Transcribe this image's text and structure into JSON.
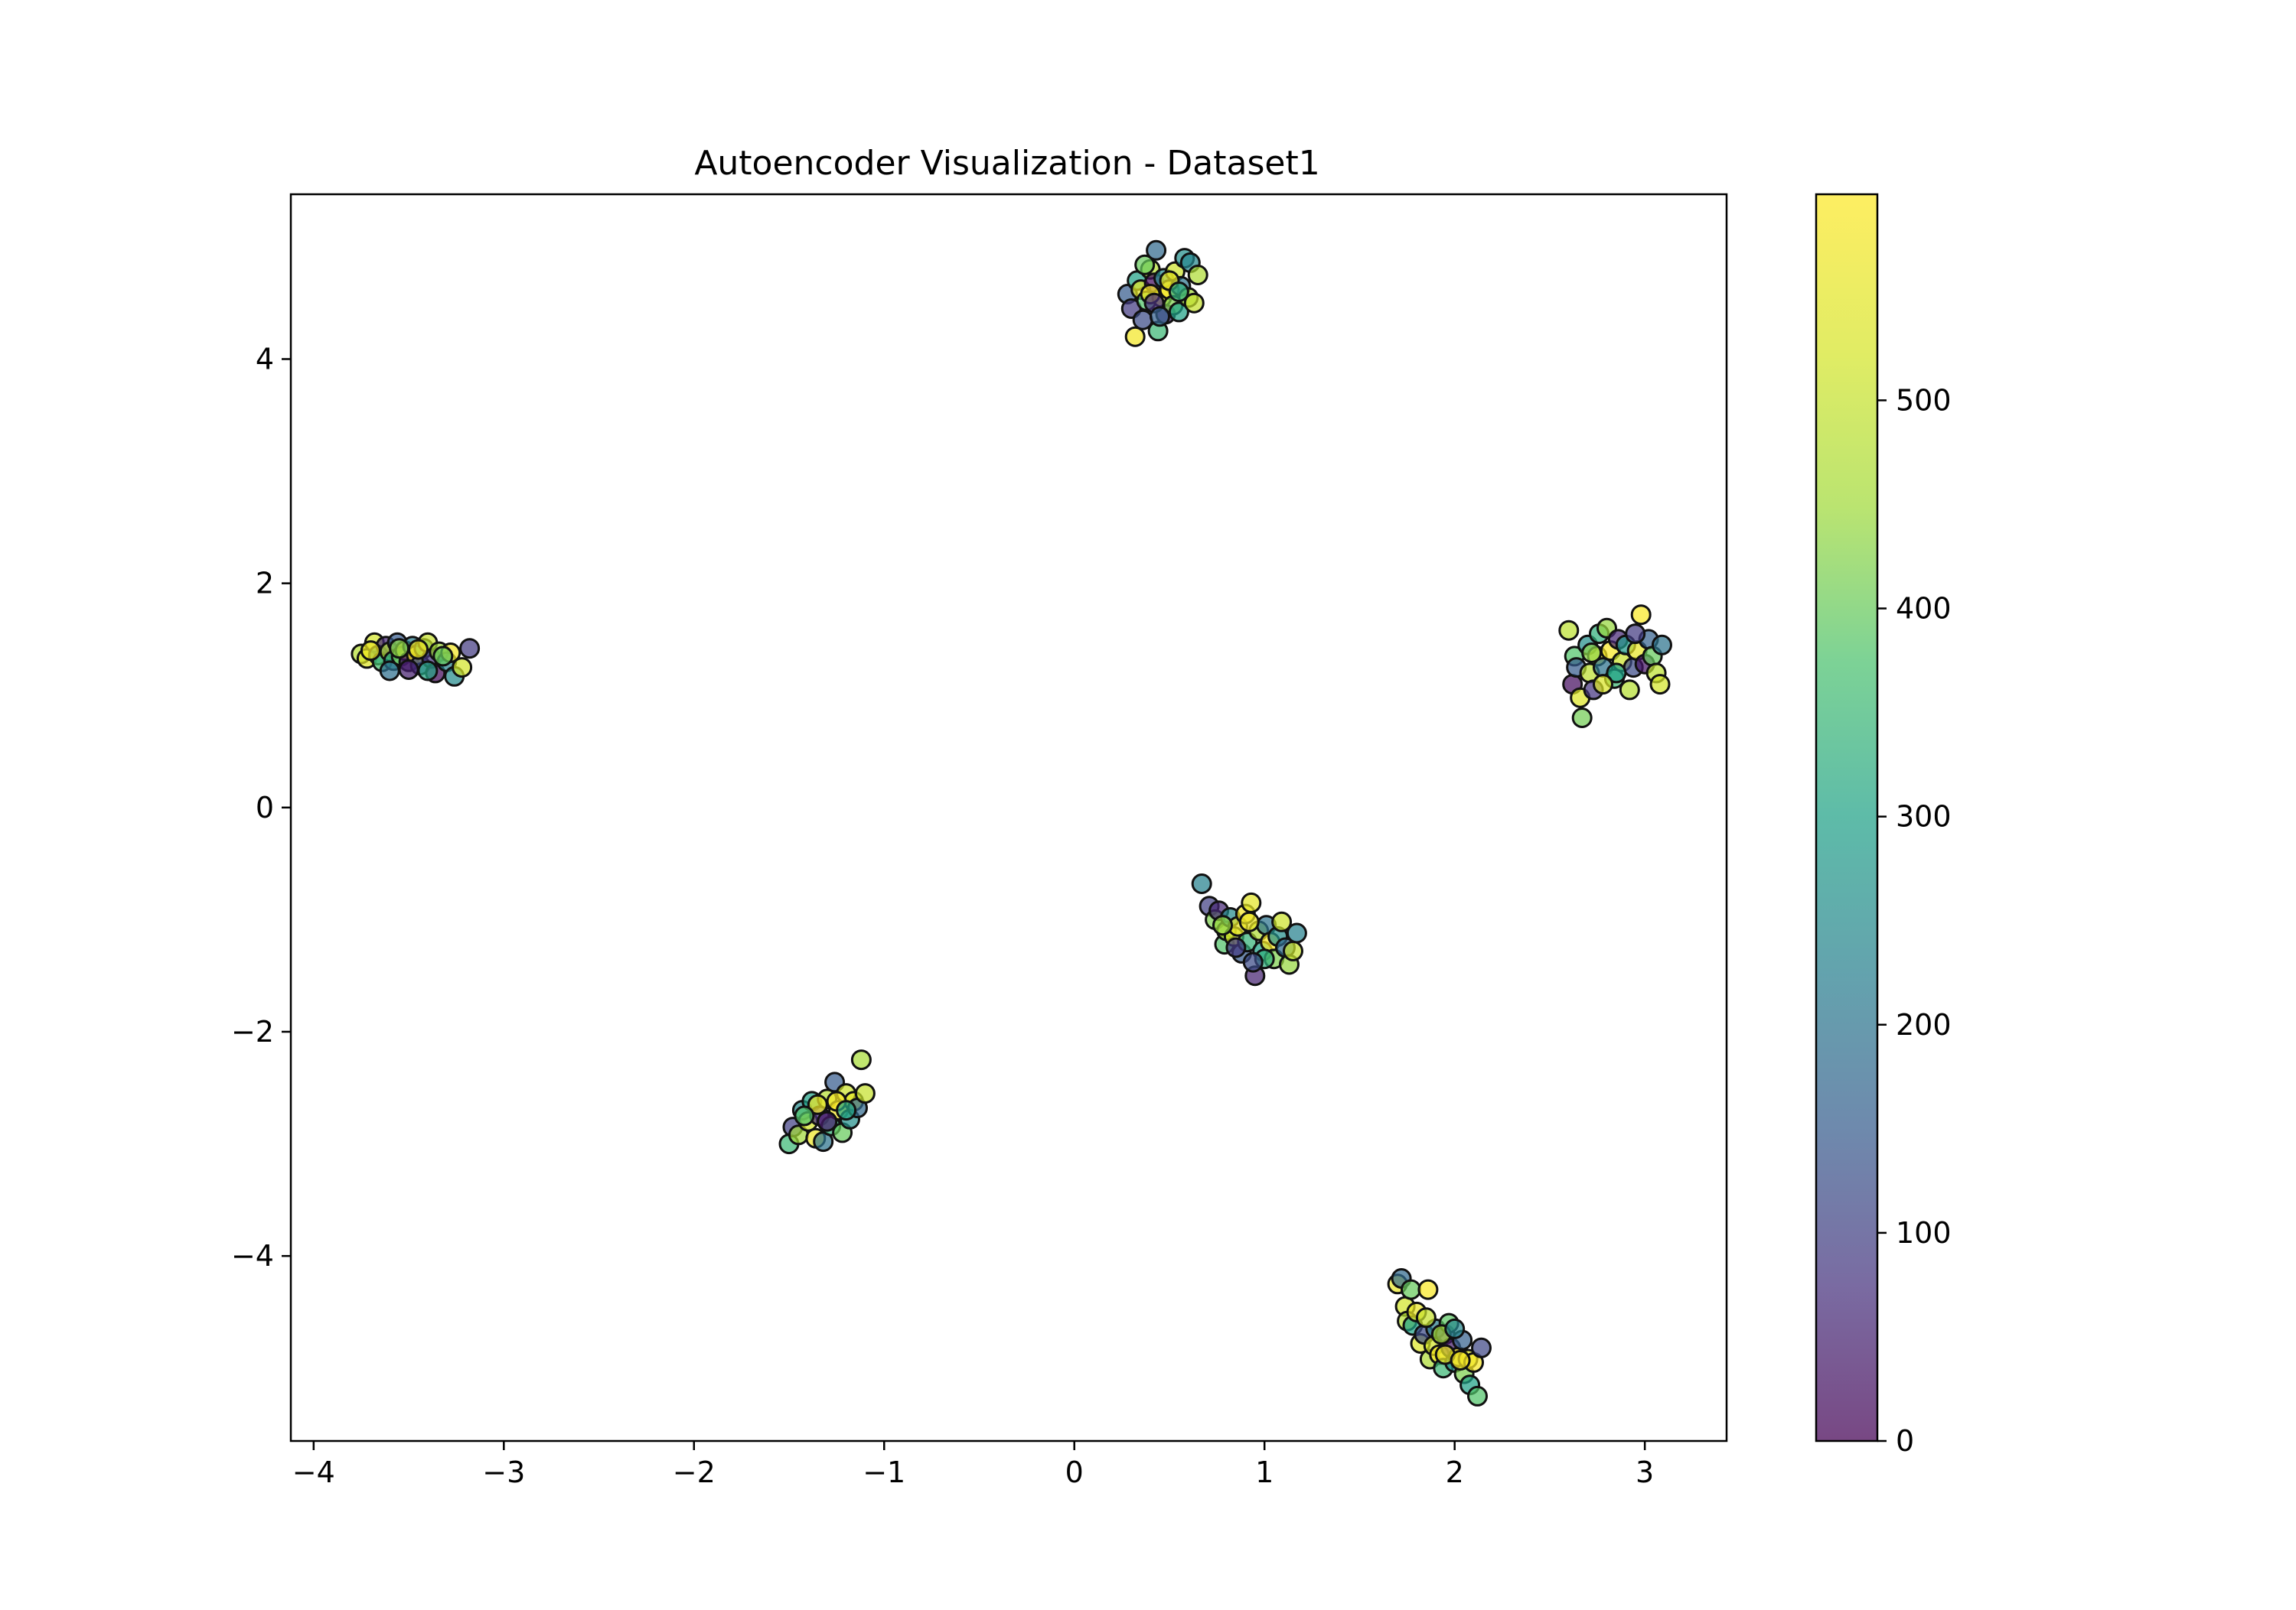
{
  "chart_data": {
    "type": "scatter",
    "title": "Autoencoder Visualization - Dataset1",
    "xlabel": "",
    "ylabel": "",
    "xlim": [
      -4.12,
      3.43
    ],
    "ylim": [
      -5.65,
      5.47
    ],
    "x_ticks": [
      -4,
      -3,
      -2,
      -1,
      0,
      1,
      2,
      3
    ],
    "y_ticks": [
      -4,
      -2,
      0,
      2,
      4
    ],
    "grid": false,
    "legend": "none",
    "colormap": "viridis",
    "colorbar": {
      "range": [
        0,
        599
      ],
      "ticks": [
        0,
        100,
        200,
        300,
        400,
        500
      ],
      "tick_labels": [
        "0",
        "100",
        "200",
        "300",
        "400",
        "500"
      ]
    },
    "marker": {
      "alpha": 0.72,
      "edgecolor": "#111111"
    },
    "colors": {
      "low": "#440154",
      "mid": "#21918c",
      "high": "#fde725"
    },
    "clusters": [
      {
        "center": [
          -3.5,
          1.35
        ],
        "spread": [
          0.15,
          0.07
        ],
        "angle_deg": 0
      },
      {
        "center": [
          0.45,
          4.55
        ],
        "spread": [
          0.09,
          0.17
        ],
        "angle_deg": 0
      },
      {
        "center": [
          2.85,
          1.3
        ],
        "spread": [
          0.13,
          0.16
        ],
        "angle_deg": 0
      },
      {
        "center": [
          0.93,
          -1.1
        ],
        "spread": [
          0.14,
          0.1
        ],
        "angle_deg": -35
      },
      {
        "center": [
          -1.3,
          -2.72
        ],
        "spread": [
          0.13,
          0.09
        ],
        "angle_deg": 35
      },
      {
        "center": [
          1.9,
          -4.72
        ],
        "spread": [
          0.16,
          0.07
        ],
        "angle_deg": -58
      }
    ],
    "points": [
      [
        -3.75,
        1.37,
        480
      ],
      [
        -3.72,
        1.33,
        540
      ],
      [
        -3.68,
        1.47,
        520
      ],
      [
        -3.66,
        1.36,
        260
      ],
      [
        -3.64,
        1.3,
        370
      ],
      [
        -3.62,
        1.44,
        60
      ],
      [
        -3.6,
        1.39,
        470
      ],
      [
        -3.58,
        1.31,
        300
      ],
      [
        -3.56,
        1.47,
        150
      ],
      [
        -3.54,
        1.35,
        410
      ],
      [
        -3.52,
        1.4,
        560
      ],
      [
        -3.5,
        1.3,
        30
      ],
      [
        -3.48,
        1.44,
        220
      ],
      [
        -3.46,
        1.36,
        590
      ],
      [
        -3.44,
        1.27,
        120
      ],
      [
        -3.42,
        1.42,
        340
      ],
      [
        -3.4,
        1.47,
        500
      ],
      [
        -3.38,
        1.33,
        80
      ],
      [
        -3.36,
        1.2,
        10
      ],
      [
        -3.34,
        1.39,
        450
      ],
      [
        -3.3,
        1.3,
        230
      ],
      [
        -3.28,
        1.38,
        580
      ],
      [
        -3.26,
        1.17,
        250
      ],
      [
        -3.22,
        1.25,
        520
      ],
      [
        -3.18,
        1.42,
        90
      ],
      [
        -3.6,
        1.22,
        190
      ],
      [
        -3.5,
        1.23,
        45
      ],
      [
        -3.4,
        1.22,
        310
      ],
      [
        -3.45,
        1.41,
        575
      ],
      [
        -3.55,
        1.42,
        430
      ],
      [
        -3.32,
        1.35,
        400
      ],
      [
        -3.7,
        1.4,
        565
      ],
      [
        0.28,
        4.58,
        150
      ],
      [
        0.3,
        4.45,
        90
      ],
      [
        0.33,
        4.7,
        300
      ],
      [
        0.32,
        4.2,
        580
      ],
      [
        0.35,
        4.62,
        550
      ],
      [
        0.36,
        4.35,
        120
      ],
      [
        0.38,
        4.52,
        380
      ],
      [
        0.4,
        4.8,
        480
      ],
      [
        0.42,
        4.68,
        20
      ],
      [
        0.43,
        4.97,
        180
      ],
      [
        0.44,
        4.25,
        350
      ],
      [
        0.46,
        4.55,
        530
      ],
      [
        0.47,
        4.72,
        250
      ],
      [
        0.48,
        4.4,
        40
      ],
      [
        0.5,
        4.62,
        590
      ],
      [
        0.52,
        4.48,
        420
      ],
      [
        0.53,
        4.78,
        510
      ],
      [
        0.55,
        4.42,
        300
      ],
      [
        0.56,
        4.65,
        200
      ],
      [
        0.58,
        4.9,
        260
      ],
      [
        0.6,
        4.55,
        450
      ],
      [
        0.61,
        4.86,
        240
      ],
      [
        0.63,
        4.5,
        500
      ],
      [
        0.65,
        4.75,
        470
      ],
      [
        0.4,
        4.58,
        585
      ],
      [
        0.37,
        4.84,
        400
      ],
      [
        0.5,
        4.7,
        560
      ],
      [
        0.42,
        4.5,
        70
      ],
      [
        0.55,
        4.6,
        330
      ],
      [
        0.45,
        4.38,
        160
      ],
      [
        2.6,
        1.58,
        490
      ],
      [
        2.62,
        1.1,
        20
      ],
      [
        2.63,
        1.35,
        380
      ],
      [
        2.64,
        1.25,
        150
      ],
      [
        2.66,
        0.98,
        540
      ],
      [
        2.67,
        0.8,
        410
      ],
      [
        2.7,
        1.45,
        260
      ],
      [
        2.71,
        1.2,
        490
      ],
      [
        2.73,
        1.05,
        80
      ],
      [
        2.75,
        1.35,
        570
      ],
      [
        2.76,
        1.55,
        330
      ],
      [
        2.78,
        1.25,
        200
      ],
      [
        2.8,
        1.6,
        440
      ],
      [
        2.82,
        1.4,
        590
      ],
      [
        2.84,
        1.15,
        350
      ],
      [
        2.86,
        1.5,
        60
      ],
      [
        2.88,
        1.3,
        510
      ],
      [
        2.9,
        1.45,
        280
      ],
      [
        2.92,
        1.05,
        480
      ],
      [
        2.94,
        1.25,
        120
      ],
      [
        2.96,
        1.4,
        560
      ],
      [
        2.98,
        1.72,
        590
      ],
      [
        3.0,
        1.28,
        30
      ],
      [
        3.02,
        1.5,
        160
      ],
      [
        3.04,
        1.35,
        400
      ],
      [
        3.06,
        1.2,
        490
      ],
      [
        3.08,
        1.1,
        520
      ],
      [
        3.09,
        1.45,
        200
      ],
      [
        2.72,
        1.38,
        430
      ],
      [
        2.85,
        1.2,
        300
      ],
      [
        2.95,
        1.55,
        90
      ],
      [
        2.78,
        1.1,
        530
      ],
      [
        0.67,
        -0.68,
        230
      ],
      [
        0.71,
        -0.88,
        100
      ],
      [
        0.74,
        -1.0,
        420
      ],
      [
        0.76,
        -0.92,
        60
      ],
      [
        0.79,
        -1.22,
        380
      ],
      [
        0.8,
        -1.1,
        480
      ],
      [
        0.82,
        -0.98,
        250
      ],
      [
        0.84,
        -1.15,
        520
      ],
      [
        0.86,
        -1.06,
        560
      ],
      [
        0.88,
        -1.3,
        150
      ],
      [
        0.9,
        -0.95,
        580
      ],
      [
        0.91,
        -1.2,
        340
      ],
      [
        0.93,
        -0.85,
        550
      ],
      [
        0.95,
        -1.5,
        50
      ],
      [
        0.97,
        -1.1,
        470
      ],
      [
        0.99,
        -1.28,
        300
      ],
      [
        1.01,
        -1.05,
        200
      ],
      [
        1.03,
        -1.2,
        590
      ],
      [
        1.05,
        -1.35,
        420
      ],
      [
        1.07,
        -1.15,
        260
      ],
      [
        1.09,
        -1.02,
        510
      ],
      [
        1.11,
        -1.25,
        180
      ],
      [
        1.13,
        -1.4,
        440
      ],
      [
        1.15,
        -1.28,
        500
      ],
      [
        1.17,
        -1.12,
        230
      ],
      [
        0.85,
        -1.25,
        90
      ],
      [
        0.92,
        -1.02,
        565
      ],
      [
        1.0,
        -1.35,
        330
      ],
      [
        0.78,
        -1.05,
        440
      ],
      [
        0.94,
        -1.38,
        120
      ],
      [
        -1.5,
        -3.0,
        350
      ],
      [
        -1.48,
        -2.85,
        100
      ],
      [
        -1.45,
        -2.92,
        450
      ],
      [
        -1.43,
        -2.7,
        250
      ],
      [
        -1.4,
        -2.8,
        520
      ],
      [
        -1.38,
        -2.62,
        300
      ],
      [
        -1.36,
        -2.95,
        570
      ],
      [
        -1.34,
        -2.75,
        70
      ],
      [
        -1.32,
        -2.98,
        200
      ],
      [
        -1.3,
        -2.6,
        480
      ],
      [
        -1.28,
        -2.84,
        340
      ],
      [
        -1.26,
        -2.45,
        150
      ],
      [
        -1.24,
        -2.7,
        590
      ],
      [
        -1.22,
        -2.9,
        400
      ],
      [
        -1.2,
        -2.55,
        510
      ],
      [
        -1.18,
        -2.78,
        260
      ],
      [
        -1.16,
        -2.62,
        550
      ],
      [
        -1.14,
        -2.68,
        180
      ],
      [
        -1.12,
        -2.25,
        460
      ],
      [
        -1.1,
        -2.55,
        500
      ],
      [
        -1.35,
        -2.65,
        560
      ],
      [
        -1.25,
        -2.62,
        585
      ],
      [
        -1.3,
        -2.8,
        40
      ],
      [
        -1.42,
        -2.75,
        380
      ],
      [
        -1.2,
        -2.7,
        310
      ],
      [
        1.7,
        -4.25,
        560
      ],
      [
        1.72,
        -4.2,
        180
      ],
      [
        1.74,
        -4.45,
        520
      ],
      [
        1.75,
        -4.58,
        480
      ],
      [
        1.77,
        -4.3,
        400
      ],
      [
        1.78,
        -4.62,
        300
      ],
      [
        1.8,
        -4.5,
        560
      ],
      [
        1.82,
        -4.78,
        540
      ],
      [
        1.84,
        -4.7,
        120
      ],
      [
        1.86,
        -4.3,
        590
      ],
      [
        1.87,
        -4.92,
        470
      ],
      [
        1.89,
        -4.8,
        520
      ],
      [
        1.9,
        -4.65,
        220
      ],
      [
        1.92,
        -4.88,
        590
      ],
      [
        1.94,
        -5.0,
        350
      ],
      [
        1.95,
        -4.7,
        80
      ],
      [
        1.97,
        -4.6,
        390
      ],
      [
        1.98,
        -4.82,
        40
      ],
      [
        2.0,
        -4.95,
        260
      ],
      [
        2.02,
        -4.9,
        580
      ],
      [
        2.04,
        -4.75,
        160
      ],
      [
        2.05,
        -5.05,
        420
      ],
      [
        2.07,
        -4.92,
        540
      ],
      [
        2.08,
        -5.15,
        300
      ],
      [
        2.1,
        -4.95,
        590
      ],
      [
        2.12,
        -5.25,
        380
      ],
      [
        2.14,
        -4.82,
        110
      ],
      [
        1.85,
        -4.55,
        500
      ],
      [
        1.93,
        -4.7,
        450
      ],
      [
        2.0,
        -4.65,
        240
      ],
      [
        1.95,
        -4.88,
        560
      ],
      [
        2.03,
        -4.93,
        590
      ]
    ]
  }
}
